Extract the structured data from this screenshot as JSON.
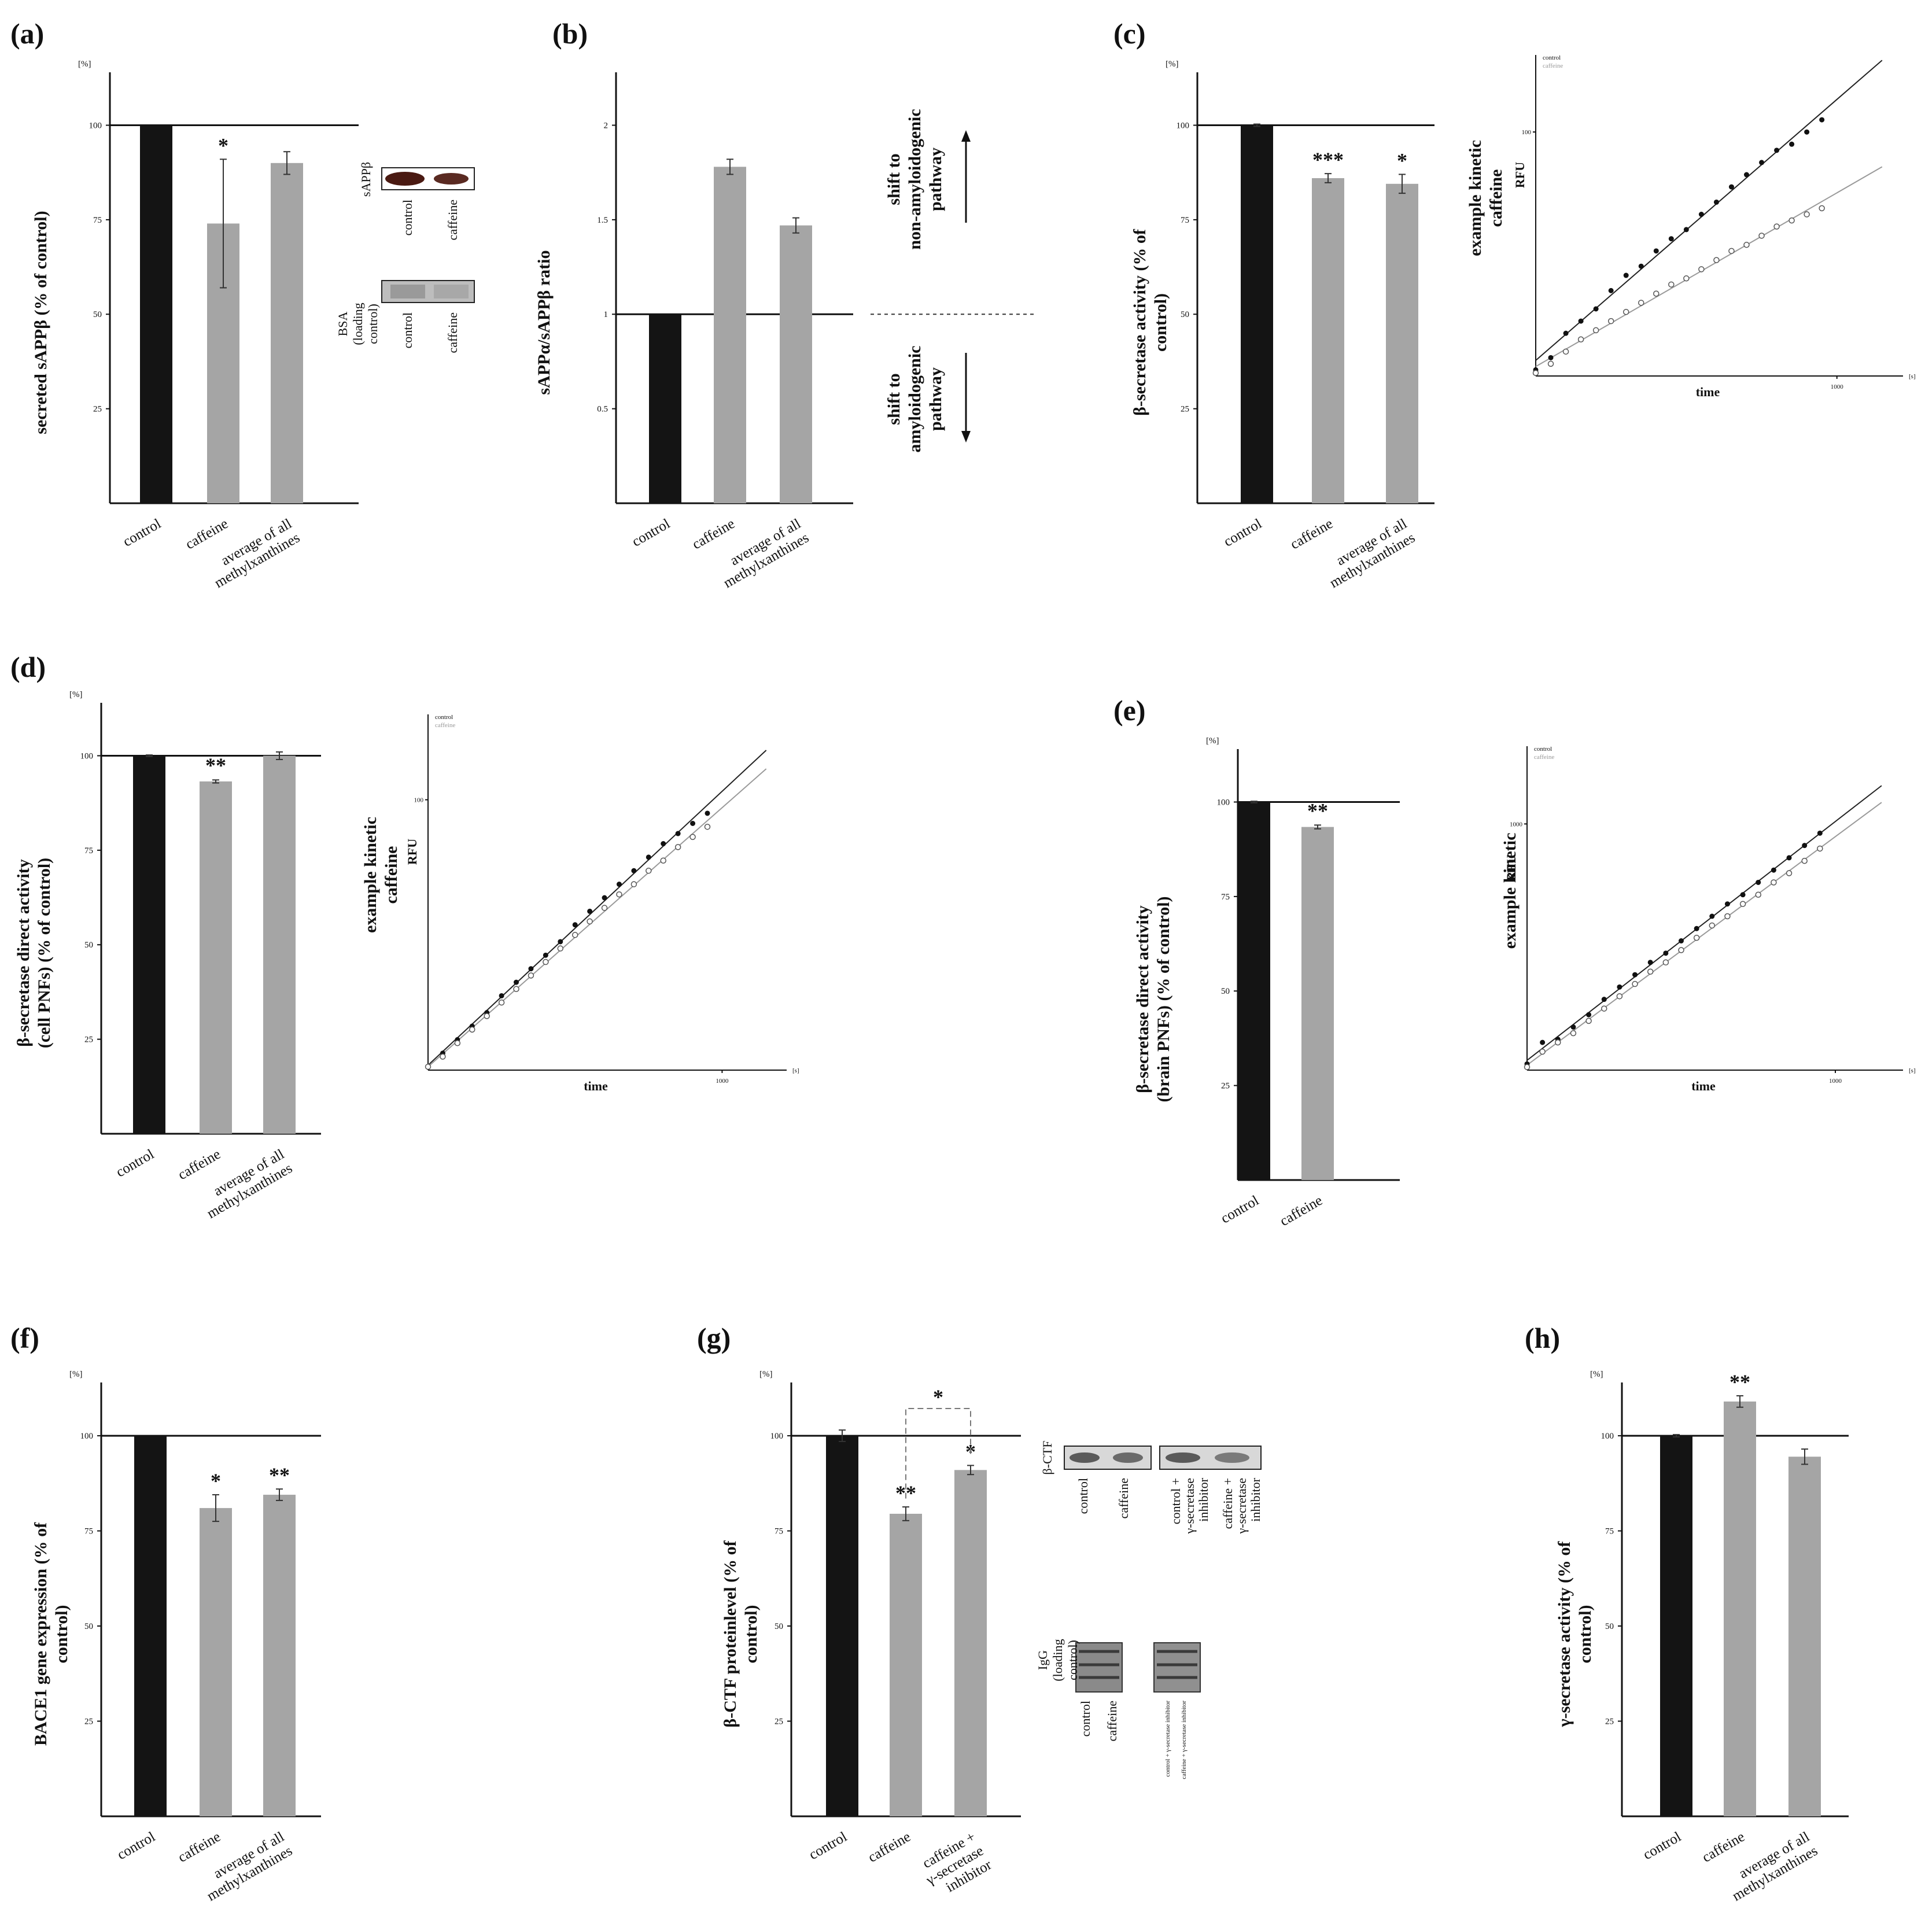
{
  "colors": {
    "control": "#141414",
    "treated": "#a5a5a5",
    "axis": "#111111",
    "fit_control": "#222222",
    "fit_caffeine": "#9a9a9a"
  },
  "panels": [
    {
      "id": "a",
      "label": "(a)",
      "unit": "[%]",
      "ylabel": "secreted sAPPβ (% of control)",
      "yticks": [
        "100",
        "75",
        "50",
        "25"
      ],
      "ymax": 100,
      "categories": [
        "control",
        "caffeine",
        "average of all methylxanthines"
      ],
      "values": [
        100,
        74,
        90
      ],
      "errors": [
        0,
        17,
        3
      ],
      "sig": [
        "",
        "*",
        ""
      ],
      "blot": {
        "proteins": [
          "sAPPβ",
          "BSA (loading control)"
        ],
        "lanes": [
          "control",
          "caffeine"
        ]
      }
    },
    {
      "id": "b",
      "label": "(b)",
      "unit": "",
      "ylabel": "sAPPα/sAPPβ ratio",
      "yticks": [
        "2",
        "1.5",
        "1",
        "0.5"
      ],
      "ymax": 2,
      "categories": [
        "control",
        "caffeine",
        "average of all methylxanthines"
      ],
      "values": [
        1.0,
        1.78,
        1.47
      ],
      "errors": [
        0,
        0.04,
        0.04
      ],
      "sig": [
        "",
        "",
        ""
      ],
      "shift_up": "shift to non-amyloidogenic pathway",
      "shift_down": "shift to amyloidogenic pathway"
    },
    {
      "id": "c",
      "label": "(c)",
      "unit": "[%]",
      "ylabel": "β-secretase activity (% of control)",
      "yticks": [
        "100",
        "75",
        "50",
        "25"
      ],
      "ymax": 100,
      "categories": [
        "control",
        "caffeine",
        "average of all methylxanthines"
      ],
      "values": [
        100,
        86,
        84.5
      ],
      "errors": [
        0.3,
        1.2,
        2.5
      ],
      "sig": [
        "",
        "***",
        "*"
      ]
    },
    {
      "id": "d",
      "label": "(d)",
      "unit": "[%]",
      "ylabel": "β-secretase direct activity (cell PNFs) (% of control)",
      "yticks": [
        "100",
        "75",
        "50",
        "25"
      ],
      "ymax": 100,
      "categories": [
        "control",
        "caffeine",
        "average of all methylxanthines"
      ],
      "values": [
        100,
        93.2,
        100
      ],
      "errors": [
        0.2,
        0.4,
        1.0
      ],
      "sig": [
        "",
        "**",
        ""
      ]
    },
    {
      "id": "e",
      "label": "(e)",
      "unit": "[%]",
      "ylabel": "β-secretase direct activity (brain PNFs) (% of control)",
      "yticks": [
        "100",
        "75",
        "50",
        "25"
      ],
      "ymax": 100,
      "categories": [
        "control",
        "caffeine"
      ],
      "values": [
        100,
        93.4
      ],
      "errors": [
        0.2,
        0.5
      ],
      "sig": [
        "",
        "**"
      ]
    },
    {
      "id": "f",
      "label": "(f)",
      "unit": "[%]",
      "ylabel": "BACE1 gene expression (% of control)",
      "yticks": [
        "100",
        "75",
        "50",
        "25"
      ],
      "ymax": 100,
      "categories": [
        "control",
        "caffeine",
        "average of all methylxanthines"
      ],
      "values": [
        100,
        81,
        84.5
      ],
      "errors": [
        0,
        3.5,
        1.5
      ],
      "sig": [
        "",
        "*",
        "**"
      ]
    },
    {
      "id": "g",
      "label": "(g)",
      "unit": "[%]",
      "ylabel": "β-CTF proteinlevel (% of control)",
      "yticks": [
        "100",
        "75",
        "50",
        "25"
      ],
      "ymax": 100,
      "categories": [
        "control",
        "caffeine",
        "caffeine + γ-secretase inhibitor"
      ],
      "values": [
        100,
        79.5,
        91
      ],
      "errors": [
        1.5,
        1.8,
        1.2
      ],
      "sig": [
        "",
        "**",
        "*"
      ],
      "bracket_sig": "*",
      "blot": {
        "proteins": [
          "β-CTF",
          "IgG (loading control)"
        ],
        "lanes": [
          "control",
          "caffeine",
          "control + γ-secretase inhibitor",
          "caffeine + γ-secretase inhibitor"
        ]
      }
    },
    {
      "id": "h",
      "label": "(h)",
      "unit": "[%]",
      "ylabel": "γ-secretase activity (% of control)",
      "yticks": [
        "100",
        "75",
        "50",
        "25"
      ],
      "ymax": 100,
      "categories": [
        "control",
        "caffeine",
        "average of all methylxanthines"
      ],
      "values": [
        100,
        109,
        94.5
      ],
      "errors": [
        0.3,
        1.5,
        2.0
      ],
      "sig": [
        "",
        "**",
        ""
      ]
    }
  ],
  "kinetics": [
    {
      "panel": "c",
      "ylabel": "example kinetic caffeine",
      "rfu": "RFU",
      "xlabel": "time",
      "ytick": "100",
      "xtick": "1000",
      "xunit": "[s]",
      "legend": [
        "control",
        "caffeine"
      ],
      "x": [
        0,
        50,
        100,
        150,
        200,
        250,
        300,
        350,
        400,
        450,
        500,
        550,
        600,
        650,
        700,
        750,
        800,
        850,
        900,
        950
      ],
      "control_y": [
        2,
        6,
        14,
        18,
        22,
        28,
        33,
        36,
        41,
        45,
        48,
        53,
        57,
        62,
        66,
        70,
        74,
        76,
        80,
        84
      ],
      "caffeine_y": [
        1,
        4,
        8,
        12,
        15,
        18,
        21,
        24,
        27,
        30,
        32,
        35,
        38,
        41,
        43,
        46,
        49,
        51,
        53,
        55
      ]
    },
    {
      "panel": "d",
      "ylabel": "example kinetic caffeine",
      "rfu": "RFU",
      "xlabel": "time",
      "ytick": "100",
      "xtick": "1000",
      "xunit": "[s]",
      "legend": [
        "control",
        "caffeine"
      ],
      "x": [
        0,
        50,
        100,
        150,
        200,
        250,
        300,
        350,
        400,
        450,
        500,
        550,
        600,
        650,
        700,
        750,
        800,
        850,
        900,
        950
      ],
      "control_y": [
        1,
        5,
        9,
        13,
        17,
        22,
        26,
        30,
        34,
        38,
        43,
        47,
        51,
        55,
        59,
        63,
        67,
        70,
        73,
        76
      ],
      "caffeine_y": [
        1,
        4,
        8,
        12,
        16,
        20,
        24,
        28,
        32,
        36,
        40,
        44,
        48,
        52,
        55,
        59,
        62,
        66,
        69,
        72
      ]
    },
    {
      "panel": "e",
      "ylabel": "example kinetic",
      "rfu": "RFU",
      "xlabel": "time",
      "ytick": "1000",
      "xtick": "1000",
      "xunit": "[s]",
      "legend": [
        "control",
        "caffeine"
      ],
      "x": [
        0,
        50,
        100,
        150,
        200,
        250,
        300,
        350,
        400,
        450,
        500,
        550,
        600,
        650,
        700,
        750,
        800,
        850,
        900,
        950
      ],
      "control_y": [
        2,
        9,
        10,
        14,
        18,
        23,
        27,
        31,
        35,
        38,
        42,
        46,
        50,
        54,
        57,
        61,
        65,
        69,
        73,
        77
      ],
      "caffeine_y": [
        1,
        6,
        9,
        12,
        16,
        20,
        24,
        28,
        32,
        35,
        39,
        43,
        47,
        50,
        54,
        57,
        61,
        64,
        68,
        72
      ]
    }
  ]
}
